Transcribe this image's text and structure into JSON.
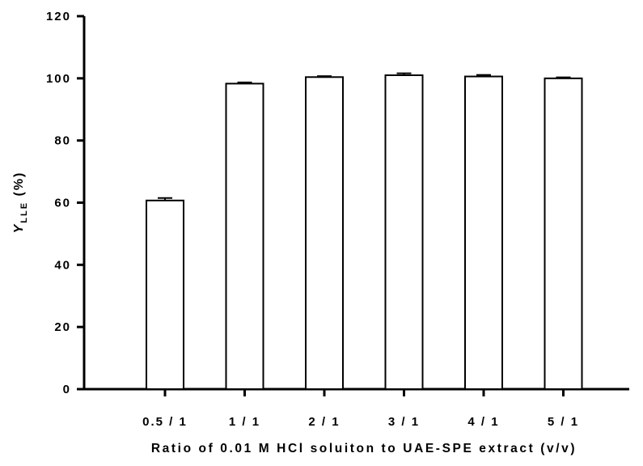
{
  "chart_data": {
    "type": "bar",
    "categories": [
      "0.5/1",
      "1/1",
      "2/1",
      "3/1",
      "4/1",
      "5/1"
    ],
    "category_labels": [
      "0.5 / 1",
      "1 / 1",
      "2 / 1",
      "3 / 1",
      "4 / 1",
      "5 / 1"
    ],
    "values": [
      60.7,
      98.3,
      100.4,
      101.0,
      100.6,
      100.0
    ],
    "errors": [
      0.8,
      0.4,
      0.3,
      0.6,
      0.5,
      0.3
    ],
    "xlabel": "Ratio of 0.01 M HCl soluiton to UAE-SPE extract (v/v)",
    "ylabel": {
      "main": "Y",
      "subscript": "LLE",
      "suffix": " (%)"
    },
    "ylim": [
      0,
      120
    ],
    "yticks": [
      0,
      20,
      40,
      60,
      80,
      100,
      120
    ],
    "grid": false,
    "bar_fill": "#ffffff",
    "bar_stroke": "#000000"
  }
}
